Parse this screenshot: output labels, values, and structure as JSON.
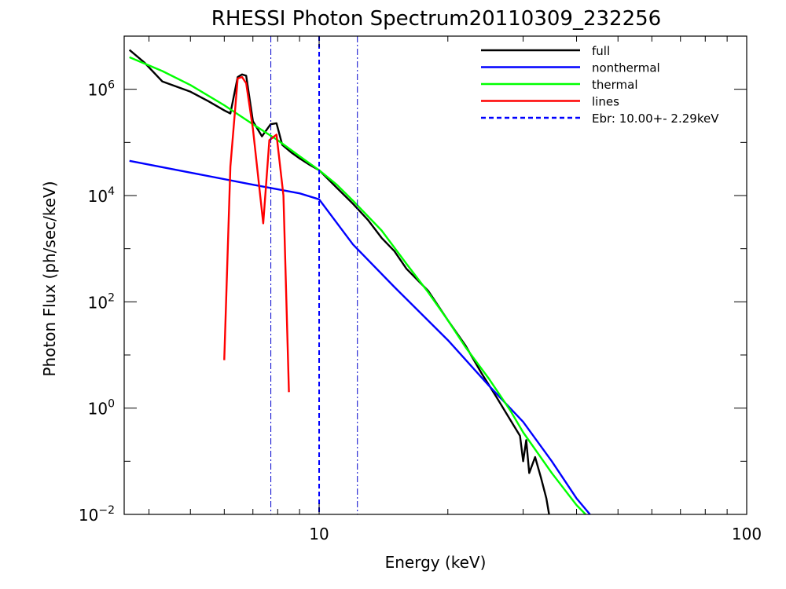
{
  "chart_data": {
    "type": "line",
    "title": "RHESSI Photon Spectrum20110309_232256",
    "xlabel": "Energy (keV)",
    "ylabel": "Photon Flux (ph/sec/keV)",
    "x_scale": "log",
    "y_scale": "log",
    "xlim": [
      3.5,
      100
    ],
    "ylim": [
      0.01,
      10000000
    ],
    "x_ticks": [
      {
        "value": 10,
        "label": "10"
      },
      {
        "value": 100,
        "label": "100"
      }
    ],
    "y_ticks": [
      {
        "value": 0.01,
        "base": "10",
        "exp": "−2"
      },
      {
        "value": 1,
        "base": "10",
        "exp": "0"
      },
      {
        "value": 100,
        "base": "10",
        "exp": "2"
      },
      {
        "value": 10000,
        "base": "10",
        "exp": "4"
      },
      {
        "value": 1000000,
        "base": "10",
        "exp": "6"
      }
    ],
    "grid": false,
    "legend_position": "top-right",
    "series": [
      {
        "name": "full",
        "color": "#000000",
        "style": "solid",
        "points": [
          [
            3.6,
            5500000
          ],
          [
            3.9,
            3200000
          ],
          [
            4.3,
            1400000
          ],
          [
            5.0,
            900000
          ],
          [
            5.5,
            600000
          ],
          [
            6.0,
            400000
          ],
          [
            6.2,
            350000
          ],
          [
            6.45,
            1700000
          ],
          [
            6.6,
            1900000
          ],
          [
            6.75,
            1800000
          ],
          [
            7.0,
            250000
          ],
          [
            7.35,
            130000
          ],
          [
            7.7,
            220000
          ],
          [
            7.95,
            230000
          ],
          [
            8.2,
            90000
          ],
          [
            8.6,
            65000
          ],
          [
            9.0,
            50000
          ],
          [
            9.5,
            38000
          ],
          [
            10.0,
            30000
          ],
          [
            11.0,
            14000
          ],
          [
            12.0,
            7000
          ],
          [
            13.0,
            3500
          ],
          [
            14.0,
            1600
          ],
          [
            15.0,
            900
          ],
          [
            16.0,
            420
          ],
          [
            18.0,
            160
          ],
          [
            20.0,
            45
          ],
          [
            22.0,
            15
          ],
          [
            24.0,
            4.5
          ],
          [
            26.0,
            1.6
          ],
          [
            28.0,
            0.6
          ],
          [
            29.5,
            0.3
          ],
          [
            30.0,
            0.1
          ],
          [
            30.5,
            0.25
          ],
          [
            31.0,
            0.06
          ],
          [
            32.0,
            0.12
          ],
          [
            33.0,
            0.05
          ],
          [
            34.0,
            0.02
          ],
          [
            34.5,
            0.01
          ]
        ]
      },
      {
        "name": "nonthermal",
        "color": "#0000ff",
        "style": "solid",
        "points": [
          [
            3.6,
            45000
          ],
          [
            5.0,
            27000
          ],
          [
            7.0,
            16000
          ],
          [
            9.0,
            11000
          ],
          [
            10.0,
            8500
          ],
          [
            12.0,
            1200
          ],
          [
            15.0,
            190
          ],
          [
            20.0,
            19
          ],
          [
            25.0,
            2.6
          ],
          [
            30.0,
            0.55
          ],
          [
            35.0,
            0.1
          ],
          [
            40.0,
            0.02
          ],
          [
            43.0,
            0.01
          ]
        ]
      },
      {
        "name": "thermal",
        "color": "#00ff00",
        "style": "solid",
        "points": [
          [
            3.6,
            4000000
          ],
          [
            4.3,
            2200000
          ],
          [
            5.0,
            1200000
          ],
          [
            6.0,
            500000
          ],
          [
            7.0,
            220000
          ],
          [
            8.0,
            110000
          ],
          [
            9.0,
            55000
          ],
          [
            10.0,
            30000
          ],
          [
            11.0,
            16000
          ],
          [
            12.0,
            8000
          ],
          [
            14.0,
            2200
          ],
          [
            16.0,
            520
          ],
          [
            18.0,
            150
          ],
          [
            20.0,
            45
          ],
          [
            22.0,
            14
          ],
          [
            25.0,
            3.5
          ],
          [
            28.0,
            0.9
          ],
          [
            30.0,
            0.35
          ],
          [
            35.0,
            0.06
          ],
          [
            40.0,
            0.015
          ],
          [
            42.0,
            0.01
          ]
        ]
      },
      {
        "name": "lines",
        "color": "#ff0000",
        "style": "solid",
        "points": [
          [
            6.0,
            8
          ],
          [
            6.2,
            35000
          ],
          [
            6.45,
            1600000
          ],
          [
            6.6,
            1700000
          ],
          [
            6.75,
            1300000
          ],
          [
            7.0,
            180000
          ],
          [
            7.4,
            3000
          ],
          [
            7.65,
            110000
          ],
          [
            7.95,
            140000
          ],
          [
            8.25,
            10000
          ],
          [
            8.5,
            2
          ]
        ]
      }
    ],
    "vlines": [
      {
        "name": "Ebr: 10.00+- 2.29keV",
        "x": 10,
        "color": "#0000ff",
        "style": "dash",
        "in_legend": true
      },
      {
        "x": 7.71,
        "color": "#0000cc",
        "style": "dashdot",
        "in_legend": false
      },
      {
        "x": 12.29,
        "color": "#0000cc",
        "style": "dashdot",
        "in_legend": false
      }
    ]
  }
}
